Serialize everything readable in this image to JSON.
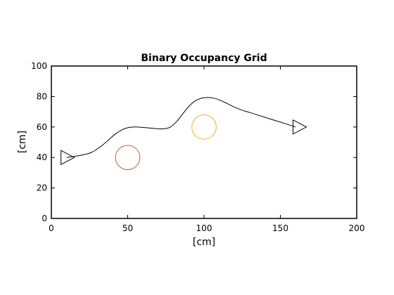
{
  "chart_data": {
    "type": "line",
    "title": "Binary Occupancy Grid",
    "xlabel": "[cm]",
    "ylabel": "[cm]",
    "xlim": [
      0,
      200
    ],
    "ylim": [
      0,
      100
    ],
    "xticks": [
      0,
      50,
      100,
      150,
      200
    ],
    "yticks": [
      0,
      20,
      40,
      60,
      80,
      100
    ],
    "grid": false,
    "series": [
      {
        "kind": "path",
        "color": "#000000",
        "x": [
          10,
          14,
          18,
          22,
          26,
          30,
          34,
          38,
          42,
          46,
          50,
          55,
          60,
          65,
          70,
          75,
          78,
          82,
          86,
          90,
          94,
          98,
          102,
          106,
          110,
          115,
          120,
          125,
          130,
          140,
          150,
          160
        ],
        "y": [
          40,
          40.6,
          41.2,
          42,
          43.2,
          45.5,
          48.5,
          52,
          55.5,
          58,
          59.5,
          60,
          59.7,
          59.3,
          58.8,
          59,
          60,
          63.5,
          68.5,
          73.5,
          77,
          78.8,
          79.3,
          79,
          77.8,
          75.5,
          73,
          71,
          69.5,
          66.3,
          63.2,
          60
        ]
      }
    ],
    "obstacles": [
      {
        "shape": "circle",
        "cx": 50,
        "cy": 40,
        "r": 8,
        "color": "#d95319"
      },
      {
        "shape": "circle",
        "cx": 100,
        "cy": 60,
        "r": 8,
        "color": "#edb120"
      }
    ],
    "markers": [
      {
        "shape": "triangle-right",
        "x": 10,
        "y": 40,
        "color": "#000000"
      },
      {
        "shape": "triangle-right",
        "x": 162,
        "y": 60,
        "color": "#000000"
      }
    ]
  }
}
